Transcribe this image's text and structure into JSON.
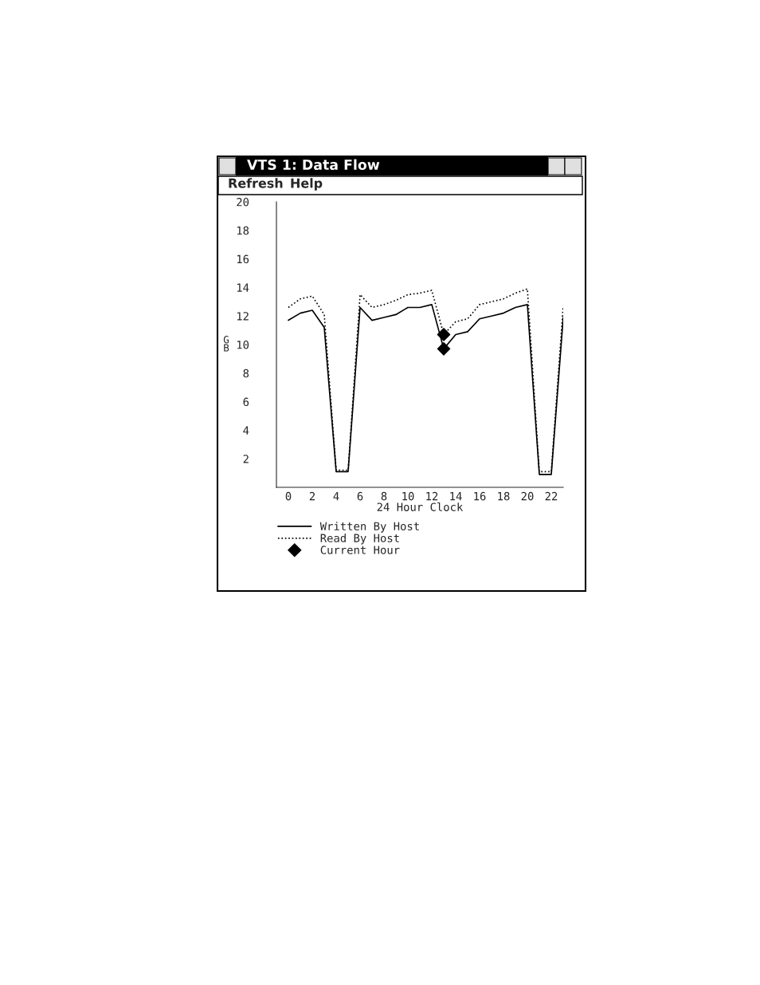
{
  "chart_data": {
    "type": "line",
    "title": "VTS 1: Data Flow",
    "xlabel": "24 Hour Clock",
    "ylabel": "GB",
    "annotations": [
      "Refresh",
      "Help"
    ],
    "x": [
      0,
      1,
      2,
      3,
      4,
      5,
      6,
      7,
      8,
      9,
      10,
      11,
      12,
      13,
      14,
      15,
      16,
      17,
      18,
      19,
      20,
      21,
      22,
      23
    ],
    "series": [
      {
        "name": "Written By Host",
        "color": "#000000",
        "line_style": "solid",
        "values": [
          11.7,
          12.2,
          12.4,
          11.2,
          1.1,
          1.1,
          12.6,
          11.7,
          11.9,
          12.1,
          12.6,
          12.6,
          12.8,
          9.7,
          10.7,
          10.9,
          11.8,
          12.0,
          12.2,
          12.6,
          12.8,
          0.9,
          0.9,
          11.9
        ]
      },
      {
        "name": "Read By Host",
        "color": "#000000",
        "line_style": "dotted",
        "values": [
          12.6,
          13.2,
          13.4,
          12.1,
          1.2,
          1.2,
          13.5,
          12.6,
          12.8,
          13.1,
          13.5,
          13.6,
          13.8,
          10.7,
          11.6,
          11.8,
          12.8,
          13.0,
          13.2,
          13.6,
          13.9,
          1.1,
          1.1,
          12.7
        ]
      },
      {
        "name": "Current Hour",
        "type": "scatter",
        "marker": "diamond",
        "color": "#000000",
        "x": [
          13,
          13
        ],
        "values": [
          9.7,
          10.7
        ]
      }
    ],
    "xlim": [
      -1,
      23
    ],
    "ylim": [
      0,
      20
    ],
    "xticks": [
      0,
      2,
      4,
      6,
      8,
      10,
      12,
      14,
      16,
      18,
      20,
      22
    ],
    "yticks": [
      2,
      4,
      6,
      8,
      10,
      12,
      14,
      16,
      18,
      20
    ],
    "grid": false,
    "legend": "bottom"
  }
}
